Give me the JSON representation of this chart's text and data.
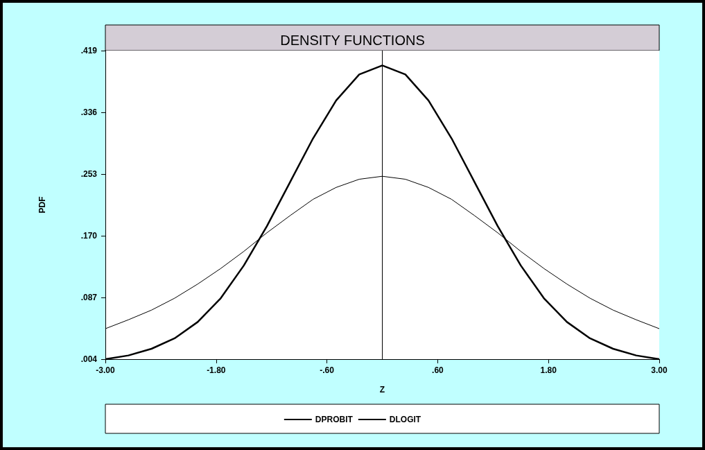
{
  "chart_data": {
    "type": "line",
    "title": "DENSITY FUNCTIONS",
    "xlabel": "Z",
    "ylabel": "PDF",
    "x": [
      -3,
      -2.75,
      -2.5,
      -2.25,
      -2,
      -1.75,
      -1.5,
      -1.25,
      -1,
      -0.75,
      -0.5,
      -0.25,
      0,
      0.25,
      0.5,
      0.75,
      1,
      1.25,
      1.5,
      1.75,
      2,
      2.25,
      2.5,
      2.75,
      3
    ],
    "series": [
      {
        "name": "DPROBIT",
        "color": "#000000",
        "values": [
          0.004,
          0.009,
          0.018,
          0.032,
          0.054,
          0.086,
          0.13,
          0.183,
          0.242,
          0.301,
          0.352,
          0.387,
          0.399,
          0.387,
          0.352,
          0.301,
          0.242,
          0.183,
          0.13,
          0.086,
          0.054,
          0.032,
          0.018,
          0.009,
          0.004
        ]
      },
      {
        "name": "DLOGIT",
        "color": "#000000",
        "values": [
          0.045,
          0.057,
          0.07,
          0.086,
          0.105,
          0.126,
          0.149,
          0.174,
          0.197,
          0.219,
          0.235,
          0.246,
          0.25,
          0.246,
          0.235,
          0.219,
          0.197,
          0.174,
          0.149,
          0.126,
          0.105,
          0.086,
          0.07,
          0.057,
          0.045
        ]
      }
    ],
    "xlim": [
      -3,
      3
    ],
    "xticks": [
      {
        "value": -3,
        "label": "-3.00"
      },
      {
        "value": -1.8,
        "label": "-1.80"
      },
      {
        "value": -0.6,
        "label": "-.60"
      },
      {
        "value": 0.6,
        "label": ".60"
      },
      {
        "value": 1.8,
        "label": "1.80"
      },
      {
        "value": 3,
        "label": "3.00"
      }
    ],
    "ylim": [
      0.004,
      0.419
    ],
    "yticks": [
      {
        "value": 0.004,
        "label": ".004"
      },
      {
        "value": 0.087,
        "label": ".087"
      },
      {
        "value": 0.17,
        "label": ".170"
      },
      {
        "value": 0.253,
        "label": ".253"
      },
      {
        "value": 0.336,
        "label": ".336"
      },
      {
        "value": 0.419,
        "label": ".419"
      }
    ],
    "ref_lines": [
      {
        "axis": "x",
        "value": 0,
        "color": "#000000"
      }
    ],
    "grid": false,
    "legend": "bottom",
    "marker": "none",
    "line_style": "solid"
  }
}
